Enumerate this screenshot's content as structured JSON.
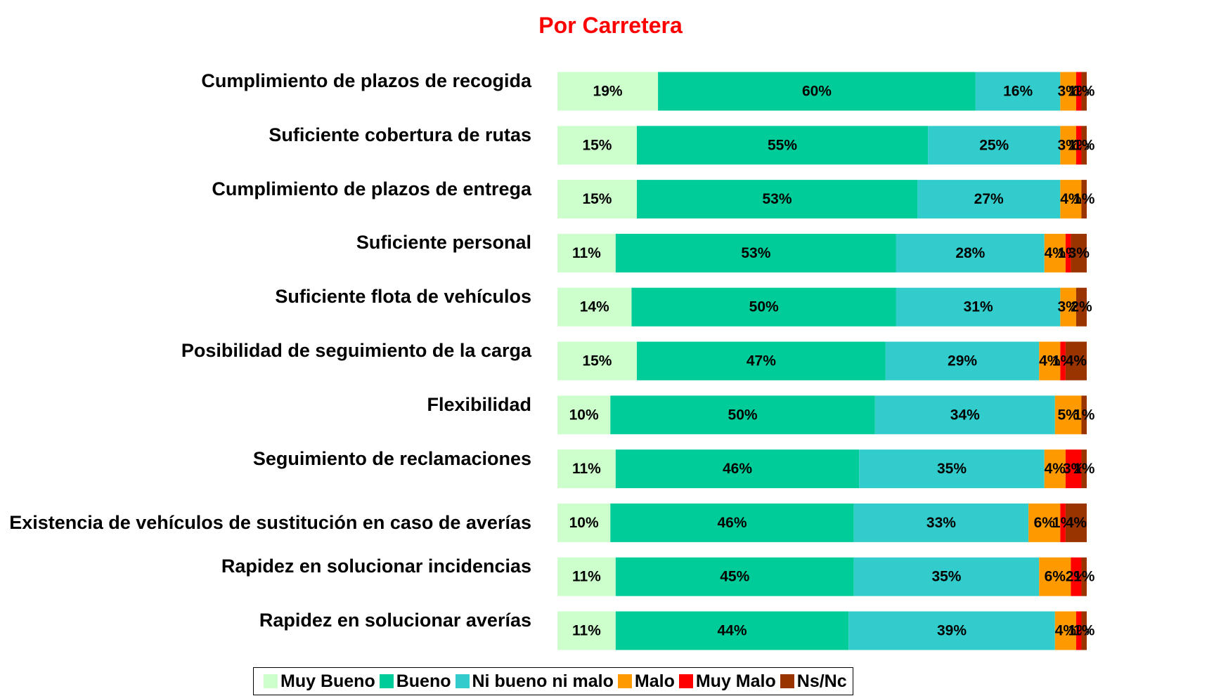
{
  "chart_data": {
    "type": "stacked-bar-horizontal",
    "title": "Por Carretera",
    "categories": [
      "Cumplimiento de plazos de recogida",
      "Suficiente cobertura de rutas",
      "Cumplimiento de plazos de entrega",
      "Suficiente personal",
      "Suficiente flota de vehículos",
      "Posibilidad de seguimiento de la carga",
      "Flexibilidad",
      "Seguimiento de reclamaciones",
      "Existencia de vehículos de sustitución en caso de averías",
      "Rapidez en solucionar incidencias",
      "Rapidez en solucionar averías"
    ],
    "xlim": [
      0,
      100
    ],
    "series": [
      {
        "name": "Muy Bueno",
        "color": "#ccffcc",
        "values": [
          19,
          15,
          15,
          11,
          14,
          15,
          10,
          11,
          10,
          11,
          11
        ]
      },
      {
        "name": "Bueno",
        "color": "#00cc99",
        "values": [
          60,
          55,
          53,
          53,
          50,
          47,
          50,
          46,
          46,
          45,
          44
        ]
      },
      {
        "name": "Ni bueno ni malo",
        "color": "#33cccc",
        "values": [
          16,
          25,
          27,
          28,
          31,
          29,
          34,
          35,
          33,
          35,
          39
        ]
      },
      {
        "name": "Malo",
        "color": "#ff9900",
        "values": [
          3,
          3,
          4,
          4,
          3,
          4,
          5,
          4,
          6,
          6,
          4
        ]
      },
      {
        "name": "Muy Malo",
        "color": "#ff0000",
        "values": [
          1,
          1,
          null,
          1,
          null,
          1,
          null,
          3,
          1,
          2,
          1
        ]
      },
      {
        "name": "Ns/Nc",
        "color": "#993300",
        "values": [
          1,
          1,
          1,
          3,
          2,
          4,
          1,
          1,
          4,
          1,
          1
        ]
      }
    ],
    "value_labels": [
      [
        "19%",
        "15%",
        "15%",
        "11%",
        "14%",
        "15%",
        "10%",
        "11%",
        "10%",
        "11%",
        "11%"
      ],
      [
        "60%",
        "55%",
        "53%",
        "53%",
        "50%",
        "47%",
        "50%",
        "46%",
        "46%",
        "45%",
        "44%"
      ],
      [
        "16%",
        "25%",
        "27%",
        "28%",
        "31%",
        "29%",
        "34%",
        "35%",
        "33%",
        "35%",
        "39%"
      ],
      [
        "3%",
        "3%",
        "4%",
        "4%",
        "3%",
        "4%",
        "5%",
        "4%",
        "6%",
        "6%",
        "4%"
      ],
      [
        "1%",
        "1%",
        null,
        "1%",
        null,
        "1%",
        null,
        "3%",
        "1%",
        "2%",
        "1%"
      ],
      [
        "1%",
        "1%",
        "1%",
        "3%",
        "2%",
        "4%",
        "1%",
        "1%",
        "4%",
        "1%",
        "1%"
      ]
    ]
  }
}
